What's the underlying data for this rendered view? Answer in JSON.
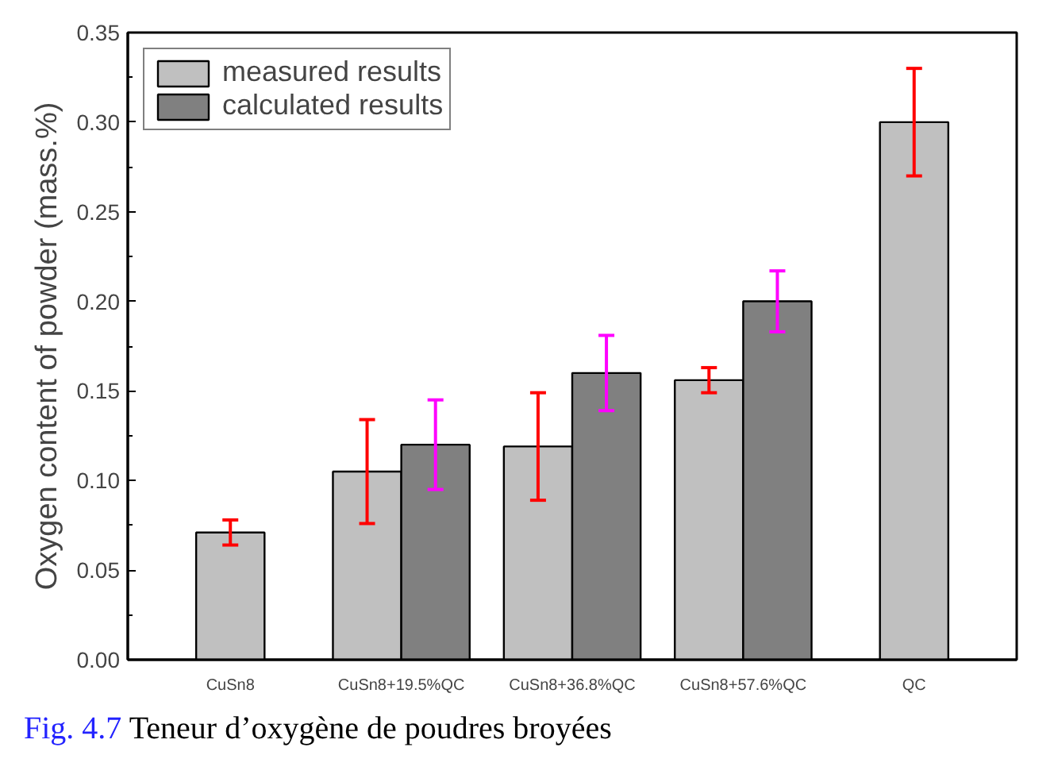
{
  "chart_data": {
    "type": "bar",
    "ylabel": "Oxygen content of powder (mass.%)",
    "categories": [
      "CuSn8",
      "CuSn8+19.5%QC",
      "CuSn8+36.8%QC",
      "CuSn8+57.6%QC",
      "QC"
    ],
    "series": [
      {
        "name": "measured results",
        "color": "#c0c0c0",
        "values": [
          0.071,
          0.105,
          0.119,
          0.156,
          0.3
        ],
        "errors": [
          0.007,
          0.029,
          0.03,
          0.007,
          0.03
        ]
      },
      {
        "name": "calculated results",
        "color": "#808080",
        "values": [
          null,
          0.12,
          0.16,
          0.2,
          null
        ],
        "errors": [
          null,
          0.025,
          0.021,
          0.017,
          null
        ]
      }
    ],
    "ylim": [
      0,
      0.35
    ],
    "yticks": [
      {
        "value": 0,
        "label": "0.00"
      },
      {
        "value": 0.05,
        "label": "0.05"
      },
      {
        "value": 0.1,
        "label": "0.10"
      },
      {
        "value": 0.15,
        "label": "0.15"
      },
      {
        "value": 0.2,
        "label": "0.20"
      },
      {
        "value": 0.25,
        "label": "0.25"
      },
      {
        "value": 0.3,
        "label": "0.30"
      },
      {
        "value": 0.35,
        "label": "0.35"
      }
    ],
    "grid": false,
    "legend": "top left",
    "annotations": [
      "Fig. 4.7",
      "Teneur d’oxygène de poudres broyées"
    ]
  }
}
